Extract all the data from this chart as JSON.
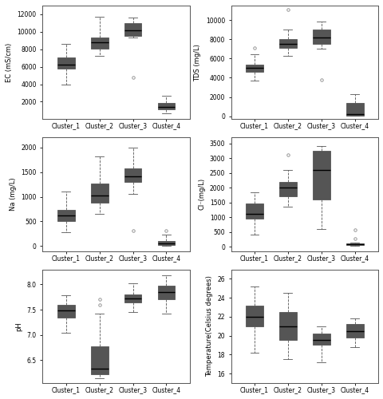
{
  "clusters": [
    "Cluster_1",
    "Cluster_2",
    "Cluster_3",
    "Cluster_4"
  ],
  "colors": [
    "#cc2222",
    "#1a3d8f",
    "#5a9a1a",
    "#f9b8d0"
  ],
  "EC": {
    "ylabel": "EC (mS/cm)",
    "ylim": [
      0,
      13000
    ],
    "yticks": [
      2000,
      4000,
      6000,
      8000,
      10000,
      12000
    ],
    "data": [
      {
        "med": 6200,
        "q1": 5800,
        "q3": 7100,
        "whislo": 4000,
        "whishi": 8600,
        "fliers": []
      },
      {
        "med": 8800,
        "q1": 8100,
        "q3": 9300,
        "whislo": 7200,
        "whishi": 11700,
        "fliers": []
      },
      {
        "med": 10200,
        "q1": 9500,
        "q3": 11000,
        "whislo": 9300,
        "whishi": 11600,
        "fliers": [
          4800
        ]
      },
      {
        "med": 1400,
        "q1": 1100,
        "q3": 1900,
        "whislo": 700,
        "whishi": 2700,
        "fliers": []
      }
    ]
  },
  "TDS": {
    "ylabel": "TDS (mg/L)",
    "ylim": [
      -300,
      11500
    ],
    "yticks": [
      0,
      2000,
      4000,
      6000,
      8000,
      10000
    ],
    "data": [
      {
        "med": 5000,
        "q1": 4600,
        "q3": 5400,
        "whislo": 3700,
        "whishi": 6400,
        "fliers": [
          7100
        ]
      },
      {
        "med": 7500,
        "q1": 7100,
        "q3": 8000,
        "whislo": 6300,
        "whishi": 9000,
        "fliers": [
          11100
        ]
      },
      {
        "med": 8200,
        "q1": 7500,
        "q3": 9000,
        "whislo": 7000,
        "whishi": 9800,
        "fliers": [
          3800
        ]
      },
      {
        "med": 200,
        "q1": 100,
        "q3": 1400,
        "whislo": 50,
        "whishi": 2300,
        "fliers": []
      }
    ]
  },
  "Na": {
    "ylabel": "Na (mg/L)",
    "ylim": [
      -100,
      2200
    ],
    "yticks": [
      0,
      500,
      1000,
      1500,
      2000
    ],
    "data": [
      {
        "med": 620,
        "q1": 500,
        "q3": 730,
        "whislo": 280,
        "whishi": 1100,
        "fliers": []
      },
      {
        "med": 1030,
        "q1": 880,
        "q3": 1270,
        "whislo": 650,
        "whishi": 1820,
        "fliers": []
      },
      {
        "med": 1420,
        "q1": 1300,
        "q3": 1580,
        "whislo": 1050,
        "whishi": 2000,
        "fliers": [
          320
        ]
      },
      {
        "med": 55,
        "q1": 30,
        "q3": 110,
        "whislo": 5,
        "whishi": 240,
        "fliers": [
          320
        ]
      }
    ]
  },
  "Cl": {
    "ylabel": "Cl⁻(mg/L)",
    "ylim": [
      -150,
      3700
    ],
    "yticks": [
      0,
      500,
      1000,
      1500,
      2000,
      2500,
      3000,
      3500
    ],
    "data": [
      {
        "med": 1100,
        "q1": 950,
        "q3": 1450,
        "whislo": 400,
        "whishi": 1850,
        "fliers": []
      },
      {
        "med": 2000,
        "q1": 1700,
        "q3": 2200,
        "whislo": 1350,
        "whishi": 2600,
        "fliers": [
          3100
        ]
      },
      {
        "med": 2600,
        "q1": 1600,
        "q3": 3250,
        "whislo": 600,
        "whishi": 3400,
        "fliers": []
      },
      {
        "med": 70,
        "q1": 50,
        "q3": 100,
        "whislo": 20,
        "whishi": 150,
        "fliers": [
          570,
          280
        ]
      }
    ]
  },
  "pH": {
    "ylabel": "pH",
    "ylim": [
      6.05,
      8.3
    ],
    "yticks": [
      6.5,
      7.0,
      7.5,
      8.0
    ],
    "data": [
      {
        "med": 7.48,
        "q1": 7.35,
        "q3": 7.6,
        "whislo": 7.05,
        "whishi": 7.78,
        "fliers": []
      },
      {
        "med": 6.33,
        "q1": 6.22,
        "q3": 6.78,
        "whislo": 6.15,
        "whishi": 7.42,
        "fliers": [
          7.6,
          7.7
        ]
      },
      {
        "med": 7.72,
        "q1": 7.65,
        "q3": 7.8,
        "whislo": 7.45,
        "whishi": 8.02,
        "fliers": []
      },
      {
        "med": 7.85,
        "q1": 7.7,
        "q3": 7.98,
        "whislo": 7.42,
        "whishi": 8.18,
        "fliers": []
      }
    ]
  },
  "Temp": {
    "ylabel": "Temperature(Celsius degrees)",
    "ylim": [
      15,
      27
    ],
    "yticks": [
      16,
      18,
      20,
      22,
      24,
      26
    ],
    "data": [
      {
        "med": 22.0,
        "q1": 21.0,
        "q3": 23.2,
        "whislo": 18.2,
        "whishi": 25.2,
        "fliers": []
      },
      {
        "med": 21.0,
        "q1": 19.5,
        "q3": 22.5,
        "whislo": 17.5,
        "whishi": 24.5,
        "fliers": []
      },
      {
        "med": 19.5,
        "q1": 19.0,
        "q3": 20.2,
        "whislo": 17.2,
        "whishi": 21.0,
        "fliers": []
      },
      {
        "med": 20.5,
        "q1": 19.8,
        "q3": 21.2,
        "whislo": 18.8,
        "whishi": 21.8,
        "fliers": []
      }
    ]
  }
}
